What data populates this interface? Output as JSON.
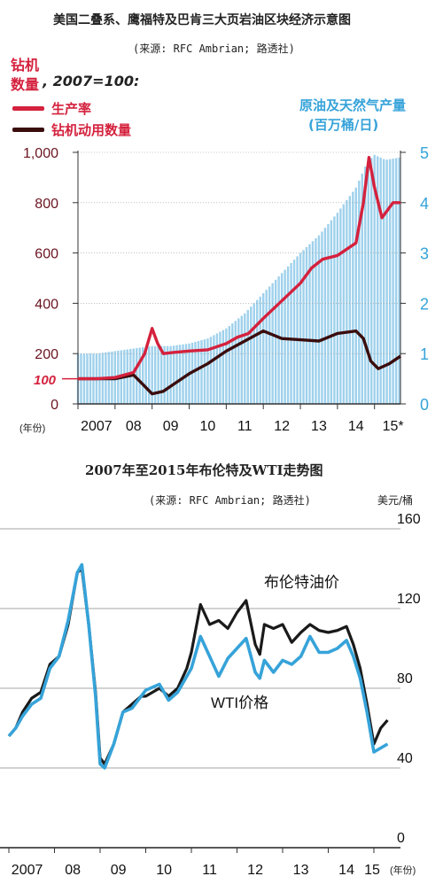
{
  "chart_data": [
    {
      "type": "line",
      "title": "美国二叠系、鹰福特及巴肯三大页岩油区块经济示意图",
      "source": "(来源: RFC Ambrian; 路透社)",
      "left_axis_label": [
        "钻机",
        "数量"
      ],
      "base_note": ", 2007=100:",
      "right_axis_label": [
        "原油及天然气产量",
        "(百万桶/日)"
      ],
      "xlabel": "(年份)",
      "x_ticks": [
        "2007",
        "08",
        "09",
        "10",
        "11",
        "12",
        "13",
        "14",
        "15*"
      ],
      "left_ticks": [
        "1,000",
        "800",
        "600",
        "400",
        "200",
        "0"
      ],
      "left_marker": "100",
      "right_ticks": [
        "5",
        "4",
        "3",
        "2",
        "1",
        "0"
      ],
      "ylim_left": [
        0,
        1000
      ],
      "ylim_right": [
        0,
        5
      ],
      "colors": {
        "productivity": "#d4213d",
        "rigs": "#3a0d0d",
        "production": "#9fd1ec",
        "axis_right": "#36a3d9"
      },
      "series": [
        {
          "name": "生产率",
          "axis": "left",
          "style": "line",
          "points": [
            [
              2007.0,
              100
            ],
            [
              2007.5,
              100
            ],
            [
              2008.0,
              105
            ],
            [
              2008.5,
              125
            ],
            [
              2008.8,
              200
            ],
            [
              2009.0,
              300
            ],
            [
              2009.15,
              240
            ],
            [
              2009.3,
              200
            ],
            [
              2009.6,
              205
            ],
            [
              2010.0,
              210
            ],
            [
              2010.5,
              215
            ],
            [
              2011.0,
              240
            ],
            [
              2011.3,
              265
            ],
            [
              2011.6,
              280
            ],
            [
              2012.0,
              340
            ],
            [
              2012.5,
              410
            ],
            [
              2013.0,
              480
            ],
            [
              2013.3,
              540
            ],
            [
              2013.6,
              575
            ],
            [
              2014.0,
              590
            ],
            [
              2014.5,
              640
            ],
            [
              2014.7,
              800
            ],
            [
              2014.85,
              980
            ],
            [
              2015.0,
              860
            ],
            [
              2015.2,
              740
            ],
            [
              2015.5,
              800
            ],
            [
              2015.7,
              800
            ]
          ]
        },
        {
          "name": "钻机动用数量",
          "axis": "left",
          "style": "line",
          "points": [
            [
              2007.0,
              100
            ],
            [
              2007.5,
              100
            ],
            [
              2008.0,
              100
            ],
            [
              2008.5,
              115
            ],
            [
              2008.8,
              70
            ],
            [
              2009.0,
              40
            ],
            [
              2009.3,
              50
            ],
            [
              2009.6,
              80
            ],
            [
              2010.0,
              120
            ],
            [
              2010.5,
              160
            ],
            [
              2011.0,
              210
            ],
            [
              2011.5,
              250
            ],
            [
              2012.0,
              290
            ],
            [
              2012.5,
              260
            ],
            [
              2013.0,
              255
            ],
            [
              2013.5,
              250
            ],
            [
              2014.0,
              280
            ],
            [
              2014.5,
              290
            ],
            [
              2014.7,
              260
            ],
            [
              2014.9,
              170
            ],
            [
              2015.1,
              140
            ],
            [
              2015.4,
              160
            ],
            [
              2015.7,
              190
            ]
          ]
        },
        {
          "name": "原油及天然气产量",
          "axis": "right",
          "style": "bars",
          "points": [
            [
              2007.0,
              1.0
            ],
            [
              2007.5,
              1.0
            ],
            [
              2008.0,
              1.05
            ],
            [
              2008.5,
              1.1
            ],
            [
              2009.0,
              1.15
            ],
            [
              2009.5,
              1.15
            ],
            [
              2010.0,
              1.2
            ],
            [
              2010.5,
              1.3
            ],
            [
              2011.0,
              1.5
            ],
            [
              2011.5,
              1.8
            ],
            [
              2012.0,
              2.2
            ],
            [
              2012.5,
              2.6
            ],
            [
              2013.0,
              3.0
            ],
            [
              2013.5,
              3.35
            ],
            [
              2014.0,
              3.8
            ],
            [
              2014.5,
              4.3
            ],
            [
              2014.8,
              4.8
            ],
            [
              2015.0,
              4.95
            ],
            [
              2015.3,
              4.85
            ],
            [
              2015.7,
              4.9
            ]
          ]
        }
      ]
    },
    {
      "type": "line",
      "title": "2007年至2015年布伦特及WTI走势图",
      "source": "(来源: RFC Ambrian; 路透社)",
      "ylabel": "美元/桶",
      "xlabel": "(年份)",
      "x_ticks": [
        "2007",
        "08",
        "09",
        "10",
        "11",
        "12",
        "13",
        "14",
        "15"
      ],
      "y_ticks": [
        "160",
        "120",
        "80",
        "40",
        "0"
      ],
      "ylim": [
        0,
        160
      ],
      "grid": true,
      "colors": {
        "brent": "#1a1a1a",
        "wti": "#36a3d9"
      },
      "series": [
        {
          "name": "布伦特油价",
          "points": [
            [
              2007.0,
              56
            ],
            [
              2007.15,
              60
            ],
            [
              2007.3,
              68
            ],
            [
              2007.5,
              75
            ],
            [
              2007.7,
              78
            ],
            [
              2007.9,
              92
            ],
            [
              2008.1,
              96
            ],
            [
              2008.3,
              112
            ],
            [
              2008.5,
              138
            ],
            [
              2008.6,
              140
            ],
            [
              2008.75,
              112
            ],
            [
              2008.9,
              78
            ],
            [
              2009.0,
              45
            ],
            [
              2009.1,
              42
            ],
            [
              2009.3,
              52
            ],
            [
              2009.5,
              68
            ],
            [
              2009.7,
              72
            ],
            [
              2009.9,
              76
            ],
            [
              2010.0,
              76
            ],
            [
              2010.3,
              80
            ],
            [
              2010.5,
              76
            ],
            [
              2010.7,
              80
            ],
            [
              2010.9,
              90
            ],
            [
              2011.0,
              98
            ],
            [
              2011.2,
              122
            ],
            [
              2011.4,
              112
            ],
            [
              2011.6,
              114
            ],
            [
              2011.8,
              110
            ],
            [
              2012.0,
              118
            ],
            [
              2012.2,
              124
            ],
            [
              2012.4,
              102
            ],
            [
              2012.5,
              97
            ],
            [
              2012.6,
              112
            ],
            [
              2012.8,
              110
            ],
            [
              2013.0,
              112
            ],
            [
              2013.2,
              103
            ],
            [
              2013.4,
              108
            ],
            [
              2013.6,
              112
            ],
            [
              2013.8,
              109
            ],
            [
              2014.0,
              108
            ],
            [
              2014.2,
              109
            ],
            [
              2014.4,
              111
            ],
            [
              2014.55,
              102
            ],
            [
              2014.7,
              90
            ],
            [
              2014.85,
              72
            ],
            [
              2015.0,
              52
            ],
            [
              2015.15,
              60
            ],
            [
              2015.3,
              64
            ]
          ]
        },
        {
          "name": "WTI价格",
          "points": [
            [
              2007.0,
              56
            ],
            [
              2007.15,
              60
            ],
            [
              2007.3,
              66
            ],
            [
              2007.5,
              72
            ],
            [
              2007.7,
              75
            ],
            [
              2007.9,
              90
            ],
            [
              2008.1,
              96
            ],
            [
              2008.3,
              114
            ],
            [
              2008.5,
              138
            ],
            [
              2008.6,
              142
            ],
            [
              2008.75,
              112
            ],
            [
              2008.9,
              76
            ],
            [
              2009.0,
              42
            ],
            [
              2009.1,
              40
            ],
            [
              2009.3,
              52
            ],
            [
              2009.5,
              68
            ],
            [
              2009.7,
              70
            ],
            [
              2009.9,
              76
            ],
            [
              2010.0,
              79
            ],
            [
              2010.3,
              82
            ],
            [
              2010.5,
              74
            ],
            [
              2010.7,
              78
            ],
            [
              2010.9,
              86
            ],
            [
              2011.0,
              90
            ],
            [
              2011.2,
              106
            ],
            [
              2011.4,
              96
            ],
            [
              2011.6,
              86
            ],
            [
              2011.8,
              95
            ],
            [
              2012.0,
              100
            ],
            [
              2012.2,
              105
            ],
            [
              2012.4,
              88
            ],
            [
              2012.5,
              85
            ],
            [
              2012.6,
              94
            ],
            [
              2012.8,
              88
            ],
            [
              2013.0,
              94
            ],
            [
              2013.2,
              92
            ],
            [
              2013.4,
              96
            ],
            [
              2013.6,
              106
            ],
            [
              2013.8,
              98
            ],
            [
              2014.0,
              98
            ],
            [
              2014.2,
              100
            ],
            [
              2014.4,
              104
            ],
            [
              2014.55,
              96
            ],
            [
              2014.7,
              85
            ],
            [
              2014.85,
              68
            ],
            [
              2015.0,
              48
            ],
            [
              2015.15,
              50
            ],
            [
              2015.3,
              52
            ]
          ]
        }
      ]
    }
  ]
}
